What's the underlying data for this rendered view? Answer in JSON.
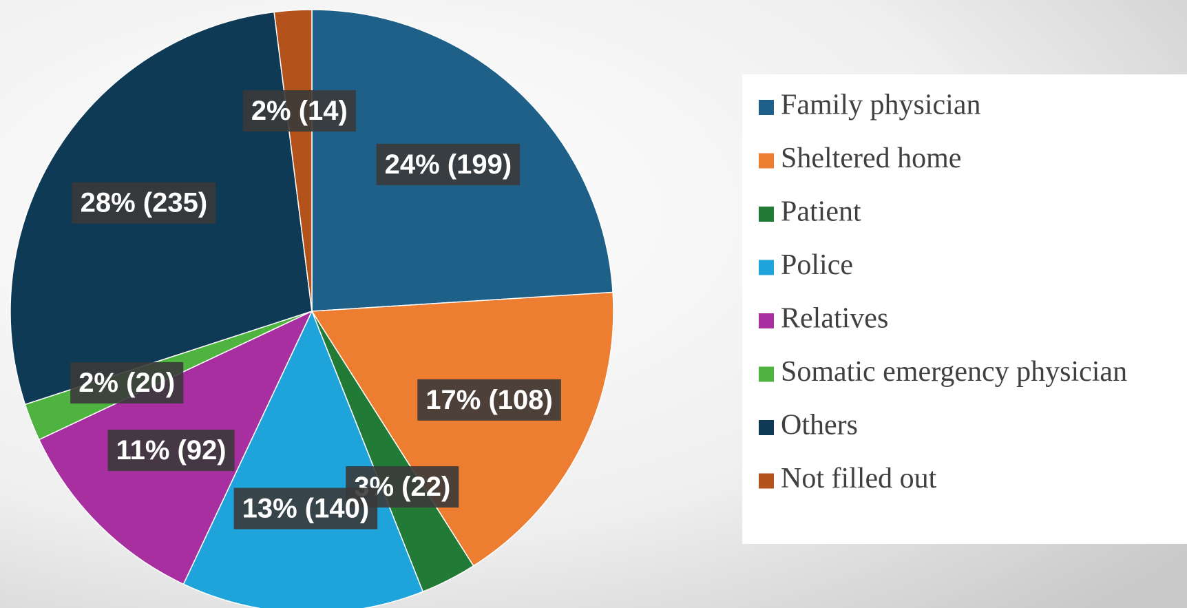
{
  "chart_data": {
    "type": "pie",
    "categories": [
      "Family physician",
      "Sheltered home",
      "Patient",
      "Police",
      "Relatives",
      "Somatic emergency physician",
      "Others",
      "Not filled out"
    ],
    "values": [
      24,
      17,
      3,
      13,
      11,
      2,
      28,
      2
    ],
    "value_labels": [
      "24% (199)",
      "17% (108)",
      "3% (22)",
      "13% (140)",
      "11% (92)",
      "2% (20)",
      "28% (235)",
      "2% (14)"
    ],
    "colors": [
      "#1f6089",
      "#ed7d31",
      "#217a35",
      "#1ea3db",
      "#a82fa0",
      "#4fb340",
      "#0e3a56",
      "#b4521c"
    ],
    "legend": "right"
  }
}
